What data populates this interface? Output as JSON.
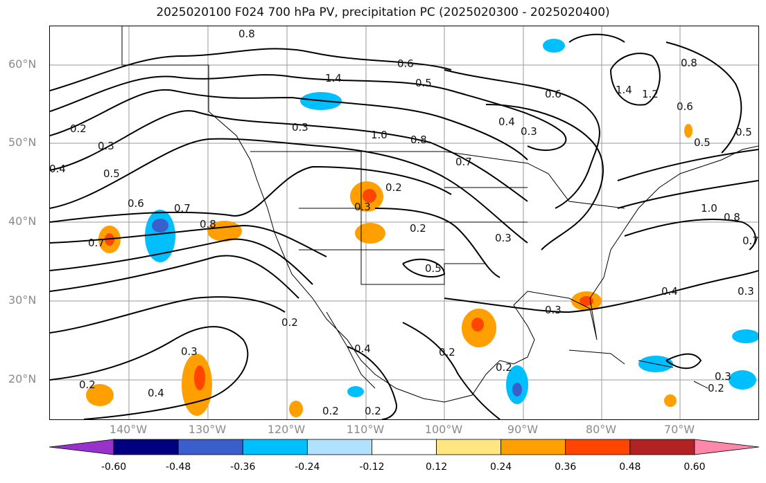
{
  "title": "2025020100 F024 700 hPa PV, precipitation PC (2025020300 - 2025020400)",
  "latitude_labels": [
    "60°N",
    "50°N",
    "40°N",
    "30°N",
    "20°N"
  ],
  "longitude_labels": [
    "140°W",
    "130°W",
    "120°W",
    "110°W",
    "100°W",
    "90°W",
    "80°W",
    "70°W"
  ],
  "colorbar": {
    "ticks": [
      "-0.60",
      "-0.48",
      "-0.36",
      "-0.24",
      "-0.12",
      "0.12",
      "0.24",
      "0.36",
      "0.48",
      "0.60"
    ],
    "colors": [
      "#9932cc",
      "#000080",
      "#3a5fcd",
      "#00bfff",
      "#b0e2ff",
      "#ffffff",
      "#ffe680",
      "#ff9f00",
      "#ff4500",
      "#b22222",
      "#ff88aa"
    ]
  },
  "contour_labels": [
    "0.8",
    "1.4",
    "0.6",
    "0.5",
    "1.4",
    "1.2",
    "0.8",
    "0.2",
    "0.3",
    "0.4",
    "0.5",
    "0.6",
    "0.7",
    "0.8",
    "0.2",
    "0.3",
    "1.0",
    "0.8",
    "0.7",
    "0.4",
    "0.3",
    "0.6",
    "0.3",
    "0.5",
    "0.5",
    "1.0",
    "0.8",
    "0.7",
    "0.2",
    "0.3",
    "0.2",
    "0.5",
    "0.4",
    "0.3",
    "0.3",
    "0.2",
    "0.2",
    "0.4",
    "0.2",
    "0.2",
    "0.3",
    "0.4",
    "0.2",
    "0.2",
    "0.3",
    "0.7",
    "0.6"
  ],
  "map_colors": {
    "contour": "#000000",
    "border": "#000000",
    "grid": "#999999"
  }
}
